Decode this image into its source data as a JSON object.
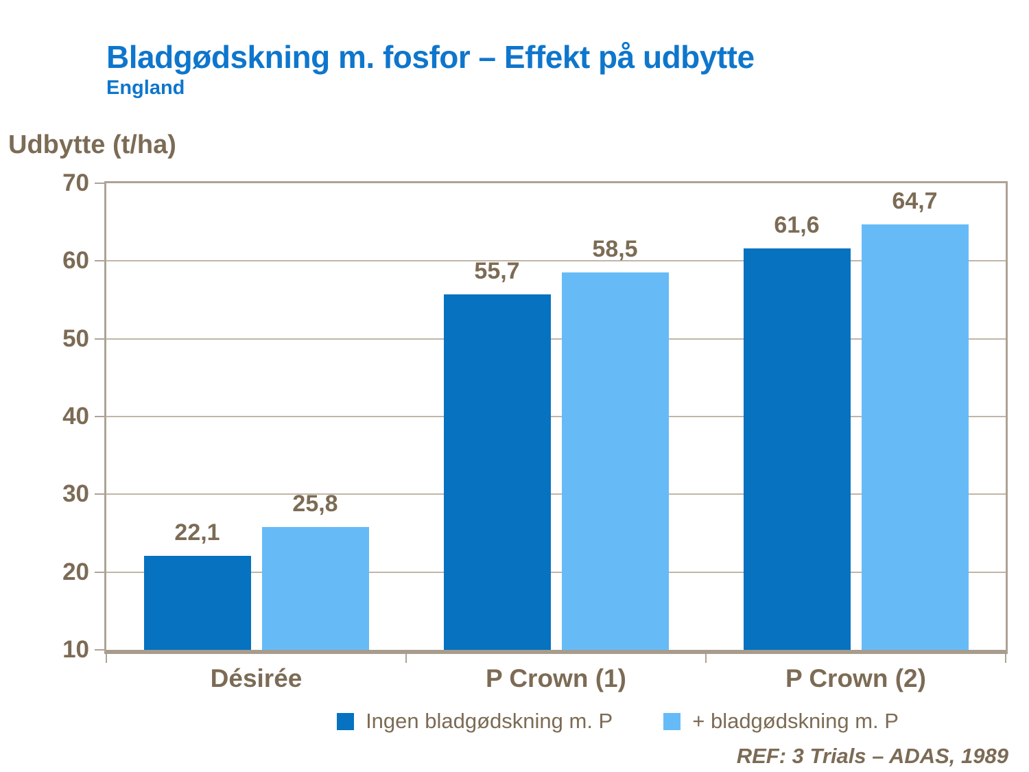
{
  "header": {
    "title": "Bladgødskning m. fosfor – Effekt på udbytte",
    "subtitle": "England"
  },
  "chart_data": {
    "type": "bar",
    "title": "Bladgødskning m. fosfor – Effekt på udbytte",
    "subtitle": "England",
    "ylabel": "Udbytte (t/ha)",
    "xlabel": "",
    "ylim": [
      10,
      70
    ],
    "yticks": [
      10,
      20,
      30,
      40,
      50,
      60,
      70
    ],
    "grid": true,
    "legend_position": "bottom",
    "categories": [
      "Désirée",
      "P Crown (1)",
      "P Crown (2)"
    ],
    "series": [
      {
        "name": "Ingen bladgødskning m. P",
        "color": "#0672c0",
        "values": [
          22.1,
          55.7,
          61.6
        ],
        "display_values": [
          "22,1",
          "55,7",
          "61,6"
        ]
      },
      {
        "name": "+ bladgødskning m. P",
        "color": "#66bbf7",
        "values": [
          25.8,
          58.5,
          64.7
        ],
        "display_values": [
          "25,8",
          "58,5",
          "64,7"
        ]
      }
    ]
  },
  "footer": {
    "text": "REF: 3 Trials – ADAS, 1989"
  },
  "colors": {
    "title_blue": "#0e76cc",
    "text_brown": "#7c6b55",
    "axis_line": "#aea295",
    "baseline": "#a89c8d",
    "gridline": "#c0b5a7",
    "series1": "#0672c0",
    "series2": "#66bbf7",
    "background": "#ffffff"
  }
}
